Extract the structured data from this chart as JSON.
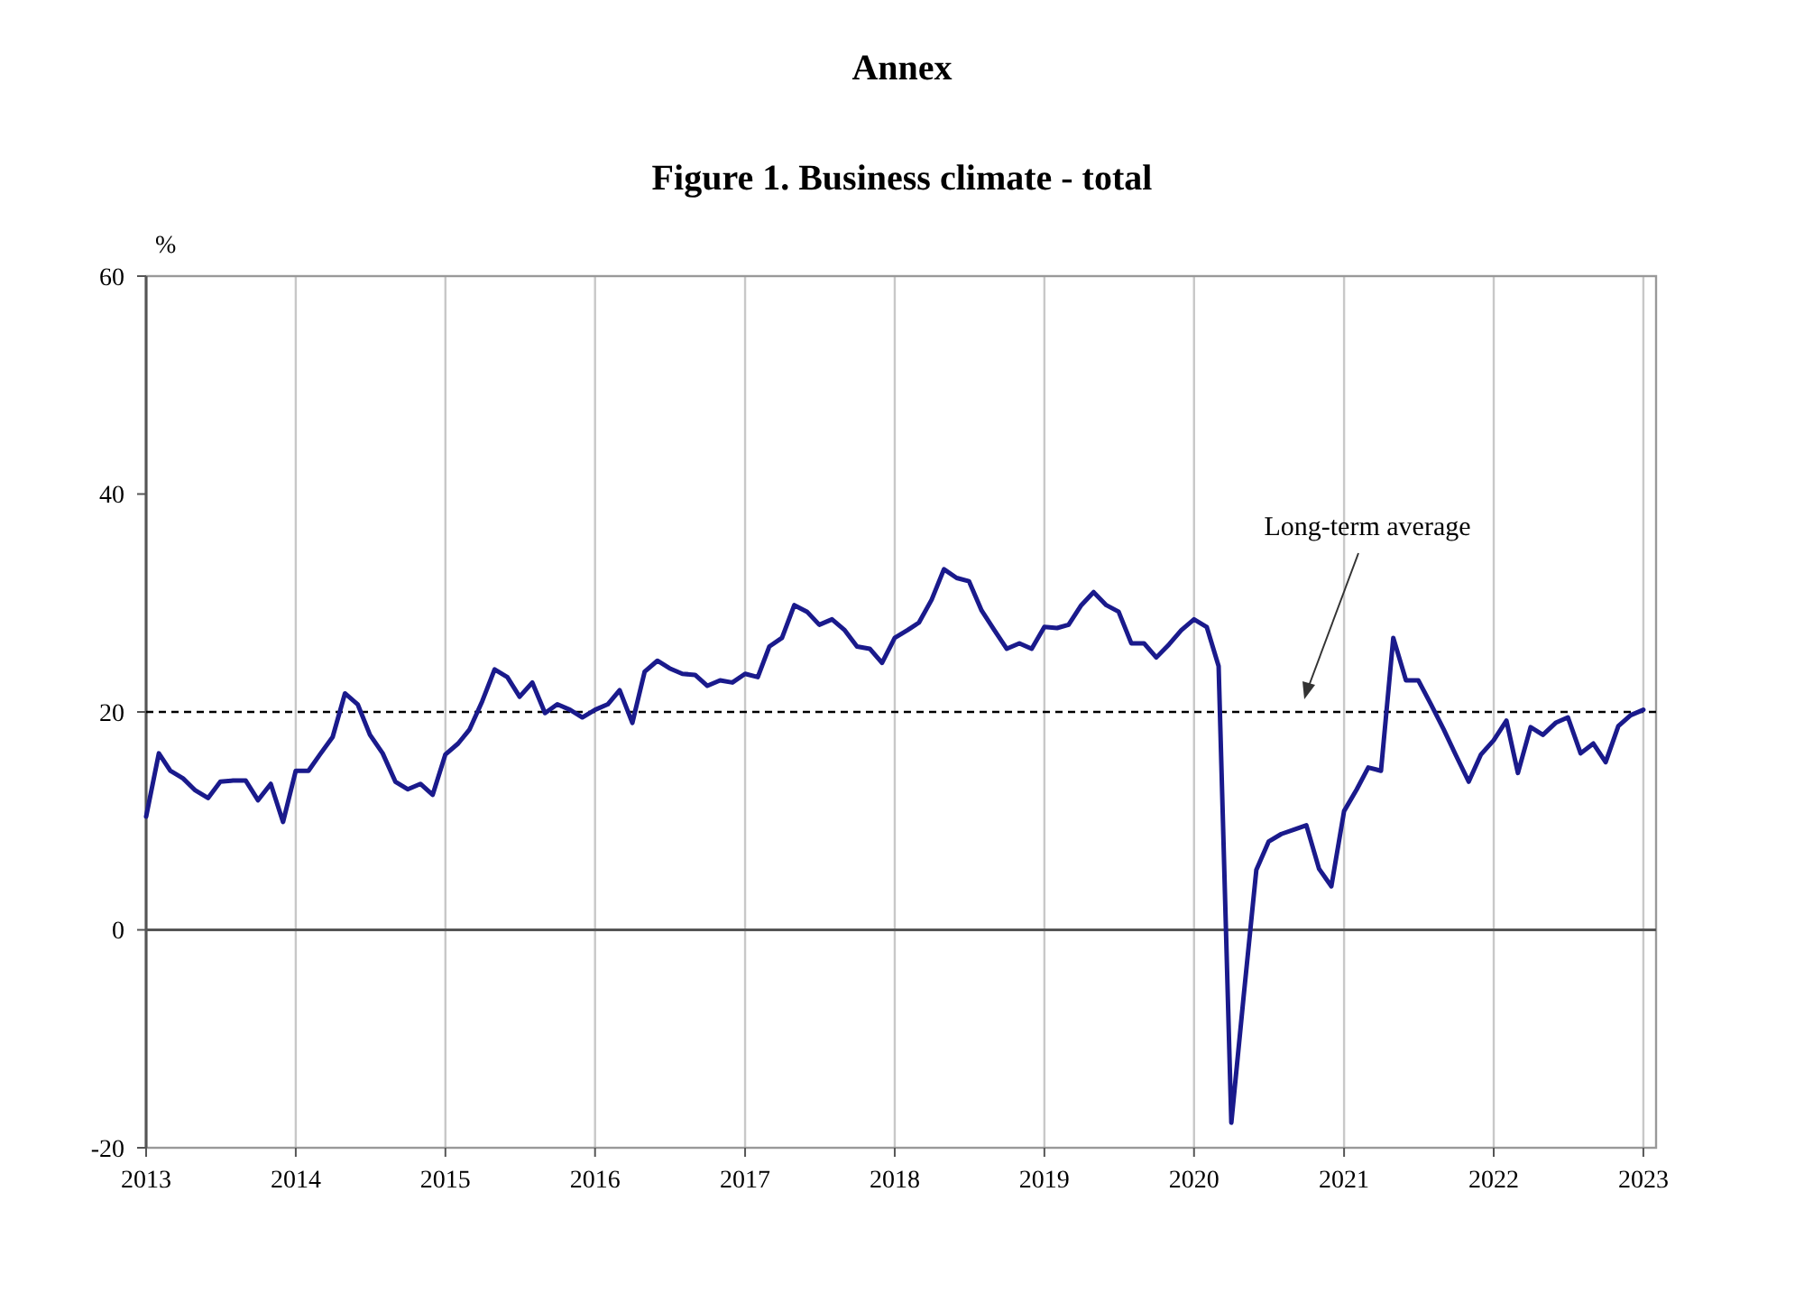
{
  "chart_data": {
    "type": "line",
    "title": "Annex",
    "subtitle": "Figure 1. Business climate - total",
    "ylabel": "%",
    "x": [
      "2013-01",
      "2013-02",
      "2013-03",
      "2013-04",
      "2013-05",
      "2013-06",
      "2013-07",
      "2013-08",
      "2013-09",
      "2013-10",
      "2013-11",
      "2013-12",
      "2014-01",
      "2014-02",
      "2014-03",
      "2014-04",
      "2014-05",
      "2014-06",
      "2014-07",
      "2014-08",
      "2014-09",
      "2014-10",
      "2014-11",
      "2014-12",
      "2015-01",
      "2015-02",
      "2015-03",
      "2015-04",
      "2015-05",
      "2015-06",
      "2015-07",
      "2015-08",
      "2015-09",
      "2015-10",
      "2015-11",
      "2015-12",
      "2016-01",
      "2016-02",
      "2016-03",
      "2016-04",
      "2016-05",
      "2016-06",
      "2016-07",
      "2016-08",
      "2016-09",
      "2016-10",
      "2016-11",
      "2016-12",
      "2017-01",
      "2017-02",
      "2017-03",
      "2017-04",
      "2017-05",
      "2017-06",
      "2017-07",
      "2017-08",
      "2017-09",
      "2017-10",
      "2017-11",
      "2017-12",
      "2018-01",
      "2018-02",
      "2018-03",
      "2018-04",
      "2018-05",
      "2018-06",
      "2018-07",
      "2018-08",
      "2018-09",
      "2018-10",
      "2018-11",
      "2018-12",
      "2019-01",
      "2019-02",
      "2019-03",
      "2019-04",
      "2019-05",
      "2019-06",
      "2019-07",
      "2019-08",
      "2019-09",
      "2019-10",
      "2019-11",
      "2019-12",
      "2020-01",
      "2020-02",
      "2020-03",
      "2020-04",
      "2020-05",
      "2020-06",
      "2020-07",
      "2020-08",
      "2020-09",
      "2020-10",
      "2020-11",
      "2020-12",
      "2021-01",
      "2021-02",
      "2021-03",
      "2021-04",
      "2021-05",
      "2021-06",
      "2021-07",
      "2021-08",
      "2021-09",
      "2021-10",
      "2021-11",
      "2021-12",
      "2022-01",
      "2022-02",
      "2022-03",
      "2022-04",
      "2022-05",
      "2022-06",
      "2022-07",
      "2022-08",
      "2022-09",
      "2022-10",
      "2022-11",
      "2022-12",
      "2023-01"
    ],
    "series": [
      {
        "color": "#1a1a8c",
        "values": [
          10.4,
          16.2,
          14.6,
          13.9,
          12.8,
          12.1,
          13.6,
          13.7,
          13.7,
          11.9,
          13.4,
          9.9,
          14.6,
          14.6,
          16.1,
          17.7,
          21.7,
          20.7,
          17.9,
          16.2,
          13.6,
          12.9,
          13.4,
          12.4,
          16.1,
          17.1,
          18.4,
          21.0,
          23.9,
          23.2,
          21.4,
          22.7,
          19.9,
          20.7,
          20.2,
          19.5,
          20.2,
          20.7,
          22.0,
          19.0,
          23.7,
          24.7,
          24.0,
          23.5,
          23.4,
          22.4,
          22.9,
          22.7,
          23.5,
          23.2,
          26.0,
          26.8,
          29.8,
          29.2,
          28.0,
          28.5,
          27.5,
          26.0,
          25.8,
          24.5,
          26.8,
          27.5,
          28.2,
          30.3,
          33.1,
          32.3,
          32.0,
          29.3,
          27.5,
          25.8,
          26.3,
          25.8,
          27.8,
          27.7,
          28.0,
          29.8,
          31.0,
          29.8,
          29.2,
          26.3,
          26.3,
          25.0,
          26.2,
          27.5,
          28.5,
          27.8,
          24.2,
          -17.7,
          -6.1,
          5.5,
          8.1,
          8.8,
          9.2,
          9.6,
          5.6,
          4.0,
          10.9,
          12.9,
          14.9,
          14.6,
          26.8,
          22.9,
          22.9,
          20.7,
          18.4,
          16.0,
          13.6,
          16.1,
          17.4,
          19.2,
          14.4,
          18.6,
          17.9,
          19.0,
          19.5,
          16.2,
          17.1,
          15.4,
          18.7,
          19.7,
          20.2
        ]
      }
    ],
    "xlim": [
      "2013-01",
      "2023-02"
    ],
    "xticks": [
      {
        "value": "2013",
        "label": "2013"
      },
      {
        "value": "2014",
        "label": "2014"
      },
      {
        "value": "2015",
        "label": "2015"
      },
      {
        "value": "2016",
        "label": "2016"
      },
      {
        "value": "2017",
        "label": "2017"
      },
      {
        "value": "2018",
        "label": "2018"
      },
      {
        "value": "2019",
        "label": "2019"
      },
      {
        "value": "2020",
        "label": "2020"
      },
      {
        "value": "2021",
        "label": "2021"
      },
      {
        "value": "2022",
        "label": "2022"
      },
      {
        "value": "2023",
        "label": "2023"
      }
    ],
    "ylim": [
      -20,
      60
    ],
    "yticks": [
      -20,
      0,
      20,
      40,
      60
    ],
    "grid": "x",
    "ref_lines": [
      {
        "axis": "y",
        "value": 20,
        "label": "Long-term average",
        "color": "#000000",
        "line_style": "dashed"
      }
    ]
  }
}
